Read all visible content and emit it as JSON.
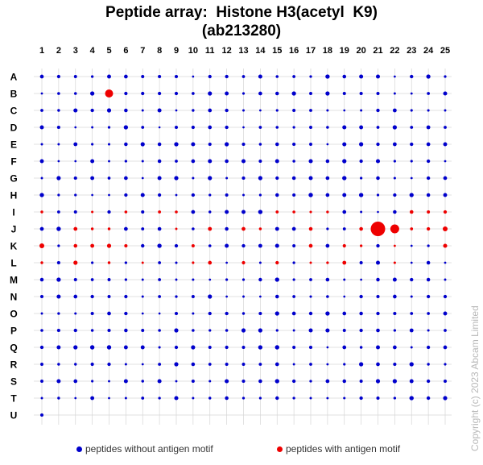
{
  "chart_data": {
    "type": "scatter",
    "title": [
      "Peptide array:  Histone H3(acetyl  K9)",
      "(ab213280)"
    ],
    "columns": [
      "1",
      "2",
      "3",
      "4",
      "5",
      "6",
      "7",
      "8",
      "9",
      "10",
      "11",
      "12",
      "13",
      "14",
      "15",
      "16",
      "17",
      "18",
      "19",
      "20",
      "21",
      "22",
      "23",
      "24",
      "25"
    ],
    "rows": [
      "A",
      "B",
      "C",
      "D",
      "E",
      "F",
      "G",
      "H",
      "I",
      "J",
      "K",
      "L",
      "M",
      "N",
      "O",
      "P",
      "Q",
      "R",
      "S",
      "T",
      "U"
    ],
    "rows_with_antigen_motif": [
      "I",
      "J",
      "K",
      "L"
    ],
    "grid": true,
    "legend_position": "bottom",
    "highlighted_spots": [
      {
        "row": "B",
        "col": 5,
        "size": 5
      },
      {
        "row": "J",
        "col": 21,
        "size": 9
      },
      {
        "row": "J",
        "col": 22,
        "size": 5.5
      },
      {
        "row": "J",
        "col": 25,
        "size": 3
      },
      {
        "row": "K",
        "col": 1,
        "size": 3
      },
      {
        "row": "U",
        "col": 1,
        "size": 2
      }
    ],
    "series": [
      {
        "name": "peptides without antigen motif",
        "color": "#0000cc"
      },
      {
        "name": "peptides with antigen motif",
        "color": "#ee0000"
      }
    ]
  },
  "copyright": "Copyright (c) 2023 Abcam Limited"
}
